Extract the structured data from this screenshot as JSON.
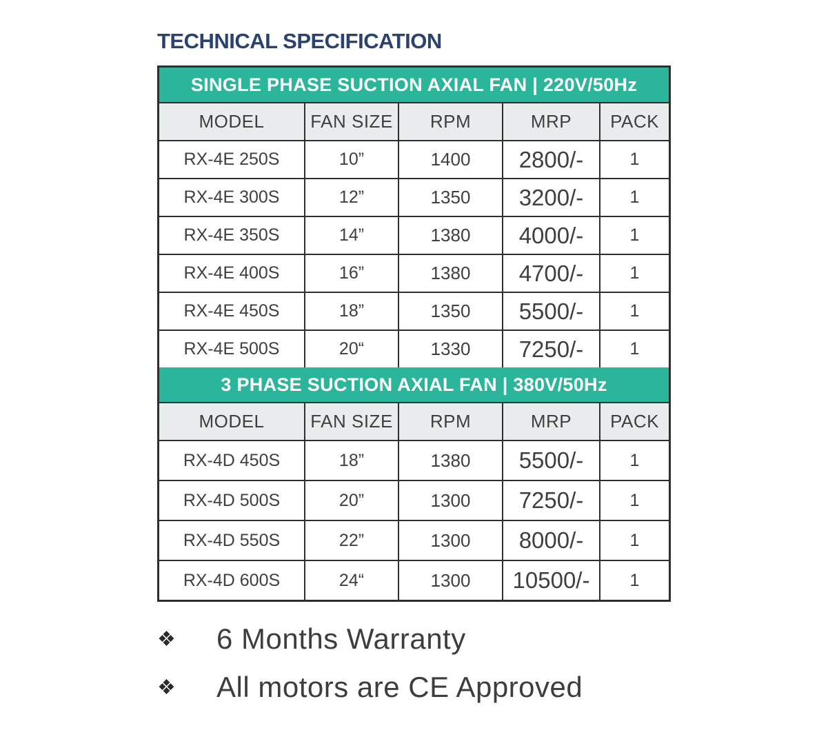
{
  "page": {
    "title": "TECHNICAL SPECIFICATION"
  },
  "colors": {
    "teal": "#2bb59a",
    "navy": "#294270",
    "header-bg": "#e9eced",
    "border": "#2e2e2e",
    "text": "#3f3f3f"
  },
  "tables": [
    {
      "banner": "SINGLE PHASE SUCTION AXIAL FAN  |  220V/50Hz",
      "columns": [
        "MODEL",
        "FAN SIZE",
        "RPM",
        "MRP",
        "PACK"
      ],
      "rows": [
        [
          "RX-4E 250S",
          "10”",
          "1400",
          "2800/-",
          "1"
        ],
        [
          "RX-4E 300S",
          "12”",
          "1350",
          "3200/-",
          "1"
        ],
        [
          "RX-4E 350S",
          "14”",
          "1380",
          "4000/-",
          "1"
        ],
        [
          "RX-4E 400S",
          "16”",
          "1380",
          "4700/-",
          "1"
        ],
        [
          "RX-4E 450S",
          "18”",
          "1350",
          "5500/-",
          "1"
        ],
        [
          "RX-4E 500S",
          "20“",
          "1330",
          "7250/-",
          "1"
        ]
      ]
    },
    {
      "banner": "3 PHASE SUCTION AXIAL FAN  |  380V/50Hz",
      "columns": [
        "MODEL",
        "FAN SIZE",
        "RPM",
        "MRP",
        "PACK"
      ],
      "rows": [
        [
          "RX-4D 450S",
          "18”",
          "1380",
          "5500/-",
          "1"
        ],
        [
          "RX-4D 500S",
          "20”",
          "1300",
          "7250/-",
          "1"
        ],
        [
          "RX-4D 550S",
          "22”",
          "1300",
          "8000/-",
          "1"
        ],
        [
          "RX-4D 600S",
          "24“",
          "1300",
          "10500/-",
          "1"
        ]
      ]
    }
  ],
  "notes": [
    {
      "bullet": "❖",
      "text": "6 Months Warranty"
    },
    {
      "bullet": "❖",
      "text": "All motors are CE Approved"
    }
  ]
}
